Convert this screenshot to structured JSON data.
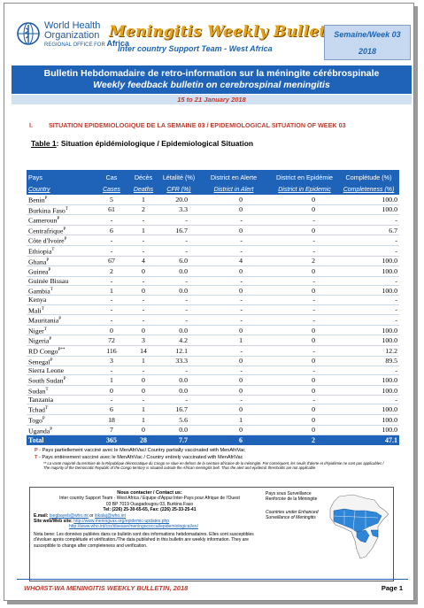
{
  "header": {
    "who_line1": "World Health",
    "who_line2": "Organization",
    "who_line3": "REGIONAL OFFICE FOR",
    "who_line4": "Africa",
    "bulletin_title": "Meningitis Weekly Bulletin",
    "bulletin_subtitle": "Inter country Support Team - West Africa",
    "week_label": "Semaine/Week 03",
    "year": "2018"
  },
  "banner": {
    "title_fr": "Bulletin Hebdomadaire de retro-information sur la méningite cérébrospinale",
    "title_en": "Weekly feedback bulletin on cerebrospinal meningitis",
    "date_range": "15 to 21 January 2018"
  },
  "section": {
    "number": "I.",
    "title": "SITUATION EPIDEMIOLOGIQUE DE LA SEMAINE 03 / EPIDEMIOLOGICAL SITUATION OF WEEK 03"
  },
  "table_title": {
    "label": "Table 1",
    "text": ":  Situation épidémiologique / Epidemiological Situation"
  },
  "table": {
    "headers_fr": [
      "Pays",
      "Cas",
      "Décès",
      "Létalité (%)",
      "District en Alerte",
      "District en Epidémie",
      "Complétude (%)"
    ],
    "headers_en": [
      "Country",
      "Cases",
      "Deaths",
      "CFR (%)",
      "District in Alert",
      "District in Epidemic",
      "Completeness (%)"
    ],
    "rows": [
      {
        "country": "Benin",
        "sup": "P",
        "cases": "5",
        "deaths": "1",
        "cfr": "20.0",
        "alert": "0",
        "epidemic": "0",
        "comp": "100.0"
      },
      {
        "country": "Burkina Faso",
        "sup": "T",
        "cases": "61",
        "deaths": "2",
        "cfr": "3.3",
        "alert": "0",
        "epidemic": "0",
        "comp": "100.0"
      },
      {
        "country": "Cameroun",
        "sup": "P",
        "cases": "-",
        "deaths": "-",
        "cfr": "-",
        "alert": "-",
        "epidemic": "-",
        "comp": "-"
      },
      {
        "country": "Centrafrique",
        "sup": "P",
        "cases": "6",
        "deaths": "1",
        "cfr": "16.7",
        "alert": "0",
        "epidemic": "0",
        "comp": "6.7"
      },
      {
        "country": "Côte d'Ivoire",
        "sup": "P",
        "cases": "-",
        "deaths": "-",
        "cfr": "-",
        "alert": "-",
        "epidemic": "-",
        "comp": "-"
      },
      {
        "country": "Ethiopia",
        "sup": "T",
        "cases": "-",
        "deaths": "-",
        "cfr": "-",
        "alert": "-",
        "epidemic": "-",
        "comp": "-"
      },
      {
        "country": "Ghana",
        "sup": "P",
        "cases": "67",
        "deaths": "4",
        "cfr": "6.0",
        "alert": "4",
        "epidemic": "2",
        "comp": "100.0"
      },
      {
        "country": "Guinea",
        "sup": "P",
        "cases": "2",
        "deaths": "0",
        "cfr": "0.0",
        "alert": "0",
        "epidemic": "0",
        "comp": "100.0"
      },
      {
        "country": "Guinée Bissau",
        "sup": "",
        "cases": "-",
        "deaths": "-",
        "cfr": "-",
        "alert": "-",
        "epidemic": "-",
        "comp": "-"
      },
      {
        "country": "Gambia",
        "sup": "T",
        "cases": "1",
        "deaths": "0",
        "cfr": "0.0",
        "alert": "0",
        "epidemic": "0",
        "comp": "100.0"
      },
      {
        "country": "Kenya",
        "sup": "",
        "cases": "-",
        "deaths": "-",
        "cfr": "-",
        "alert": "-",
        "epidemic": "-",
        "comp": "-"
      },
      {
        "country": "Mali",
        "sup": "T",
        "cases": "-",
        "deaths": "-",
        "cfr": "-",
        "alert": "-",
        "epidemic": "-",
        "comp": "-"
      },
      {
        "country": "Mauritania",
        "sup": "P",
        "cases": "-",
        "deaths": "-",
        "cfr": "-",
        "alert": "-",
        "epidemic": "-",
        "comp": "-"
      },
      {
        "country": "Niger",
        "sup": "T",
        "cases": "0",
        "deaths": "0",
        "cfr": "0.0",
        "alert": "0",
        "epidemic": "0",
        "comp": "100.0"
      },
      {
        "country": "Nigeria",
        "sup": "P",
        "cases": "72",
        "deaths": "3",
        "cfr": "4.2",
        "alert": "1",
        "epidemic": "0",
        "comp": "100.0"
      },
      {
        "country": "RD Congo",
        "sup": "P**",
        "cases": "116",
        "deaths": "14",
        "cfr": "12.1",
        "alert": "-",
        "epidemic": "-",
        "comp": "12.2"
      },
      {
        "country": "Senegal",
        "sup": "P",
        "cases": "3",
        "deaths": "1",
        "cfr": "33.3",
        "alert": "0",
        "epidemic": "0",
        "comp": "89.5"
      },
      {
        "country": "Sierra Leone",
        "sup": "",
        "cases": "-",
        "deaths": "-",
        "cfr": "-",
        "alert": "-",
        "epidemic": "-",
        "comp": "-"
      },
      {
        "country": "South Sudan",
        "sup": "P",
        "cases": "1",
        "deaths": "0",
        "cfr": "0.0",
        "alert": "0",
        "epidemic": "0",
        "comp": "100.0"
      },
      {
        "country": "Sudan",
        "sup": "T",
        "cases": "0",
        "deaths": "0",
        "cfr": "0.0",
        "alert": "0",
        "epidemic": "0",
        "comp": "100.0"
      },
      {
        "country": "Tanzania",
        "sup": "",
        "cases": "-",
        "deaths": "-",
        "cfr": "-",
        "alert": "-",
        "epidemic": "-",
        "comp": "-"
      },
      {
        "country": "Tchad",
        "sup": "T",
        "cases": "6",
        "deaths": "1",
        "cfr": "16.7",
        "alert": "0",
        "epidemic": "0",
        "comp": "100.0"
      },
      {
        "country": "Togo",
        "sup": "P",
        "cases": "18",
        "deaths": "1",
        "cfr": "5.6",
        "alert": "1",
        "epidemic": "0",
        "comp": "100.0"
      },
      {
        "country": "Uganda",
        "sup": "P",
        "cases": "7",
        "deaths": "0",
        "cfr": "0.0",
        "alert": "0",
        "epidemic": "0",
        "comp": "100.0"
      }
    ],
    "total": {
      "country": "Total",
      "cases": "365",
      "deaths": "28",
      "cfr": "7.7",
      "alert": "6",
      "epidemic": "2",
      "comp": "47.1"
    }
  },
  "notes": {
    "p_mark": "P",
    "p_text": " - Pays partiellement vacciné avec le MenAfriVac/ Country partially  vaccinated with MenAfriVac",
    "t_mark": "T",
    "t_text": " - Pays entièrement vacciné avec le MenAfriVac / Country entirely  vaccinated with MenAfriVac",
    "star_note": "**  La vaste majorité du territoire de la République démocratique du Congo se situe en dehors de la ceinture africaine de la méningite. Par conséquent, les seuils d'alerte et d'épidémie ne sont pas applicables / The majority of the Democratic Republic of the Congo territory is situated outside the African meningitis belt. Thus the alert and epidemic thresholds are not applicable"
  },
  "contact": {
    "title": "Nous contacter / Contact us:",
    "line1": "Inter country Support Team - West Africa / Equipe d'Appui  Inter-Pays pour Afrique de l'Ouest",
    "line2": "03 BP 7019 Ouagadougou 03,  Burkina Faso",
    "tel": "Tel: (226) 25-30-65-65, Fax: (226) 25-33-25-41",
    "email_label": "E.mail:",
    "email1": "tsegbayeb@who.int",
    "email_sep": " or ",
    "email2": "itikalaj@who.int",
    "site_label": "Site web/Web site:",
    "site1": "http://www.meningvax.org/epidemic-updates.php",
    "site2": "http://www.who.int/csr/disease/meningococcal/epidemiological/en/",
    "nb": "Nota bene: Les données publiées dans ce bulletin sont des informations hebdomadaires. Elles sont susceptibles d'évoluer après complétude et vérification./The data published in this bulletin are weekly information. They are susceptible to change after completeness and verification.",
    "legend1_fr": "Pays sous Surveillance",
    "legend1_fr2": "Renforcée de la Méningite",
    "legend2_en": "Countries under Enhanced",
    "legend2_en2": "Surveillance of Meningitis"
  },
  "footer": {
    "title": "WHO/IST-WA MENINGITIS WEEKLY BULLETIN, 2018",
    "page": "Page 1"
  },
  "colors": {
    "brand_blue": "#1f63b8",
    "title_orange": "#e8a317",
    "accent_red": "#c0392b"
  }
}
